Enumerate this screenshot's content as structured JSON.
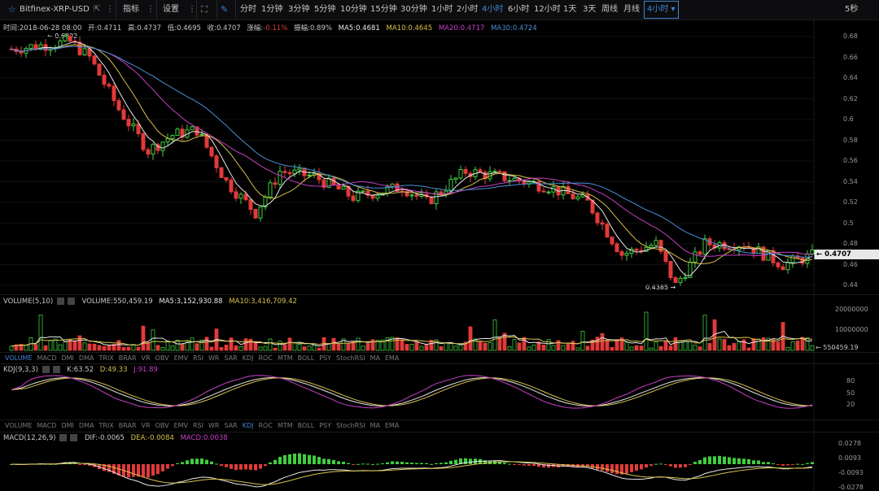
{
  "toolbar": {
    "symbol": "Bitfinex-XRP-USD",
    "indicators": "指标",
    "settings": "设置",
    "intervals": [
      "分时",
      "1分钟",
      "3分钟",
      "5分钟",
      "10分钟",
      "15分钟",
      "30分钟",
      "1小时",
      "2小时",
      "4小时",
      "6小时",
      "12小时",
      "1天",
      "3天",
      "周线",
      "月线"
    ],
    "active_interval": "4小时",
    "dropdown_interval": "4小时",
    "refresh": "5秒"
  },
  "main_info": {
    "time": "时间:2018-06-28 08:00",
    "open": "开:0.4711",
    "high": "高:0.4737",
    "low": "低:0.4695",
    "close": "收:0.4707",
    "change": "涨幅:-0.11%",
    "amplitude": "振幅:0.89%",
    "ma5": "MA5:0.4681",
    "ma10": "MA10:0.4645",
    "ma20": "MA20:0.4717",
    "ma30": "MA30:0.4724"
  },
  "colors": {
    "up": "#3fcf3f",
    "down": "#e23a3a",
    "ma5": "#e8e8e8",
    "ma10": "#d8c24a",
    "ma20": "#c83fc8",
    "ma30": "#4a8fd8",
    "accent": "#3f86d6"
  },
  "price_axis": [
    "0.68",
    "0.66",
    "0.64",
    "0.62",
    "0.6",
    "0.58",
    "0.56",
    "0.54",
    "0.52",
    "0.5",
    "0.48",
    "0.46",
    "0.44"
  ],
  "current_price": "0.4707",
  "max_label": "← 0.6802",
  "min_label": "0.4385 →",
  "volume_info": {
    "title": "VOLUME(5,10)",
    "volume": "VOLUME:550,459.19",
    "ma5": "MA5:3,152,930.88",
    "ma10": "MA10:3,416,709.42"
  },
  "volume_axis": [
    "20000000",
    "10000000"
  ],
  "current_volume": "← 550459.19",
  "indicator_tabs": [
    "VOLUME",
    "MACD",
    "DMI",
    "DMA",
    "TRIX",
    "BRAR",
    "VR",
    "OBV",
    "EMV",
    "RSI",
    "WR",
    "SAR",
    "KDJ",
    "ROC",
    "MTM",
    "BOLL",
    "PSY",
    "StochRSI",
    "MA",
    "EMA"
  ],
  "tabs1_active": "VOLUME",
  "tabs2_active": "KDJ",
  "kdj_info": {
    "title": "KDJ(9,3,3)",
    "k": "K:63.52",
    "d": "D:49.33",
    "j": "J:91.89"
  },
  "kdj_axis": [
    "80",
    "50",
    "20"
  ],
  "macd_info": {
    "title": "MACD(12,26,9)",
    "dif": "DIF:-0.0065",
    "dea": "DEA:-0.0084",
    "macd": "MACD:0.0038"
  },
  "macd_axis": [
    "0.0278",
    "0.0093",
    "-0.0093",
    "-0.0278"
  ]
}
